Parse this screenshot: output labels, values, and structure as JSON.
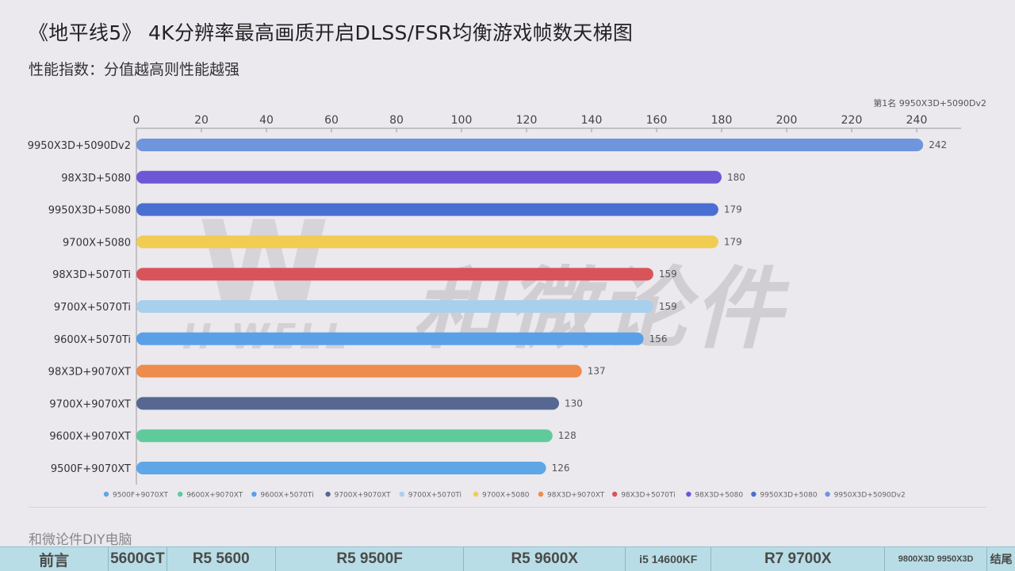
{
  "title": "《地平线5》 4K分辨率最高画质开启DLSS/FSR均衡游戏帧数天梯图",
  "subtitle": "性能指数：分值越高则性能越强",
  "rank_note": "第1名 9950X3D+5090Dv2",
  "watermark": {
    "main": "和微论件",
    "sub": "H-WELL",
    "logo": "W"
  },
  "footer": {
    "brand": "和微论件DIY电脑"
  },
  "nav": [
    {
      "label": "前言"
    },
    {
      "label": "5600GT"
    },
    {
      "label": "R5 5600"
    },
    {
      "label": "R5 9500F"
    },
    {
      "label": "R5 9600X"
    },
    {
      "label": "i5 14600KF"
    },
    {
      "label": "R7 9700X"
    },
    {
      "label": "9800X3D  9950X3D"
    },
    {
      "label": "结尾"
    }
  ],
  "chart_data": {
    "type": "bar",
    "orientation": "horizontal",
    "x_axis_position": "top",
    "xlim": [
      0,
      250
    ],
    "xticks": [
      0,
      20,
      40,
      60,
      80,
      100,
      120,
      140,
      160,
      180,
      200,
      220,
      240
    ],
    "grid": false,
    "legend_position": "bottom",
    "categories": [
      "9950X3D+5090Dv2",
      "98X3D+5080",
      "9950X3D+5080",
      "9700X+5080",
      "98X3D+5070Ti",
      "9700X+5070Ti",
      "9600X+5070Ti",
      "98X3D+9070XT",
      "9700X+9070XT",
      "9600X+9070XT",
      "9500F+9070XT"
    ],
    "values": [
      242,
      180,
      179,
      179,
      159,
      159,
      156,
      137,
      130,
      128,
      126
    ],
    "colors": [
      "#6f95dc",
      "#6c57d6",
      "#4a6fd2",
      "#f0cd52",
      "#d9545a",
      "#a8d0ec",
      "#5aa0e8",
      "#ee8c4e",
      "#566892",
      "#5fcb9a",
      "#5ea6e6"
    ],
    "legend": [
      {
        "label": "9500F+9070XT",
        "color": "#5ea6e6"
      },
      {
        "label": "9600X+9070XT",
        "color": "#5fcb9a"
      },
      {
        "label": "9600X+5070Ti",
        "color": "#5aa0e8"
      },
      {
        "label": "9700X+9070XT",
        "color": "#566892"
      },
      {
        "label": "9700X+5070Ti",
        "color": "#a8d0ec"
      },
      {
        "label": "9700X+5080",
        "color": "#f0cd52"
      },
      {
        "label": "98X3D+9070XT",
        "color": "#ee8c4e"
      },
      {
        "label": "98X3D+5070Ti",
        "color": "#d9545a"
      },
      {
        "label": "98X3D+5080",
        "color": "#6c57d6"
      },
      {
        "label": "9950X3D+5080",
        "color": "#4a6fd2"
      },
      {
        "label": "9950X3D+5090Dv2",
        "color": "#6f95dc"
      }
    ]
  }
}
